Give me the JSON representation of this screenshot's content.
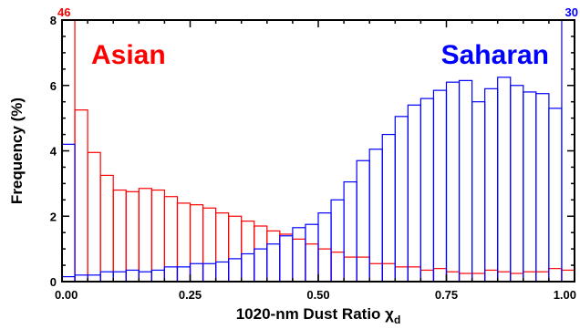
{
  "chart_data": {
    "type": "bar",
    "subtype": "overlaid-histogram",
    "xlabel": "1020-nm Dust Ratio χ",
    "xlabel_subscript": "d",
    "ylabel": "Frequency (%)",
    "xlim": [
      0.0,
      1.0
    ],
    "ylim": [
      0,
      8
    ],
    "xticks": [
      "0.00",
      "0.25",
      "0.50",
      "0.75",
      "1.00"
    ],
    "yticks": [
      "0",
      "2",
      "4",
      "6",
      "8"
    ],
    "bin_width": 0.025,
    "bin_edges_start": 0.0,
    "series": [
      {
        "name": "Asian",
        "color": "#ff0000",
        "clipped_value_label": "46",
        "values": [
          46,
          5.25,
          3.95,
          3.25,
          2.8,
          2.75,
          2.8,
          2.75,
          2.6,
          2.4,
          2.35,
          2.25,
          2.1,
          2.05,
          1.9,
          1.75,
          1.7,
          1.5,
          1.45,
          1.25,
          1.2,
          1.05,
          0.9,
          0.85,
          0.75,
          0.75,
          0.65,
          0.5,
          0.55,
          0.5,
          0.45,
          0.45,
          0.4,
          0.45,
          0.4,
          0.35,
          0.35,
          0.4,
          0.4,
          0.35,
          0.4,
          0.35,
          0.35,
          0.3,
          0.3,
          0.3,
          0.35,
          0.3,
          0.3,
          0.35,
          0.35,
          0.4,
          0.45,
          0.4,
          0.3,
          0.35,
          0.3,
          0.35,
          0.35,
          0.3,
          0.3,
          0.3,
          0.3,
          0.35,
          0.35,
          0.3,
          0.3,
          0.3,
          0.3,
          0.35,
          0.35,
          0.3,
          0.3,
          0.35,
          0.35,
          0.3,
          0.3,
          0.35,
          0.35,
          0.3,
          0.35,
          0.35,
          0.3,
          0.3,
          0.35,
          0.35,
          0.3,
          0.3,
          0.35,
          0.35,
          0.3,
          0.3,
          0.35,
          0.4,
          0.4,
          0.35,
          0.35,
          0.3,
          0.85,
          0.85
        ],
        "bins_visible": [
          46,
          5.25,
          3.95,
          3.25,
          2.8,
          2.75,
          2.85,
          2.8,
          2.6,
          2.4,
          2.35,
          2.25,
          2.1,
          2.0,
          1.85,
          1.7,
          1.55,
          1.45,
          1.3,
          1.15,
          1.0,
          0.9,
          0.75,
          0.75,
          0.55,
          0.55,
          0.45,
          0.45,
          0.35,
          0.4,
          0.3,
          0.25,
          0.25,
          0.35,
          0.3,
          0.25,
          0.3,
          0.3,
          0.4,
          0.35
        ]
      },
      {
        "name": "Saharan",
        "color": "#0000ff",
        "clipped_value_label": "30",
        "bins_visible": [
          4.2,
          0.05,
          0.1,
          0.05,
          0.05,
          0.05,
          0.1,
          0.1,
          0.15,
          0.15,
          0.2,
          0.2,
          0.3,
          0.3,
          0.35,
          0.3,
          0.35,
          0.45,
          0.45,
          0.55,
          0.55,
          0.6,
          0.7,
          0.85,
          1.0,
          1.15,
          1.4,
          1.65,
          1.75,
          2.1,
          2.5,
          3.05,
          3.7,
          4.05,
          4.5,
          5.05,
          5.4,
          5.6,
          5.85,
          6.1,
          6.15,
          5.5,
          5.9,
          6.25,
          6.0,
          5.8,
          5.75,
          5.3,
          30
        ]
      }
    ],
    "annotations": [
      {
        "text": "Asian",
        "color": "#ff0000",
        "position": "top-left"
      },
      {
        "text": "Saharan",
        "color": "#0000ff",
        "position": "top-right"
      },
      {
        "text": "46",
        "color": "#ff0000",
        "position": "top-left-corner"
      },
      {
        "text": "30",
        "color": "#0000ff",
        "position": "top-right-corner"
      }
    ],
    "legend": "none",
    "grid": false
  }
}
